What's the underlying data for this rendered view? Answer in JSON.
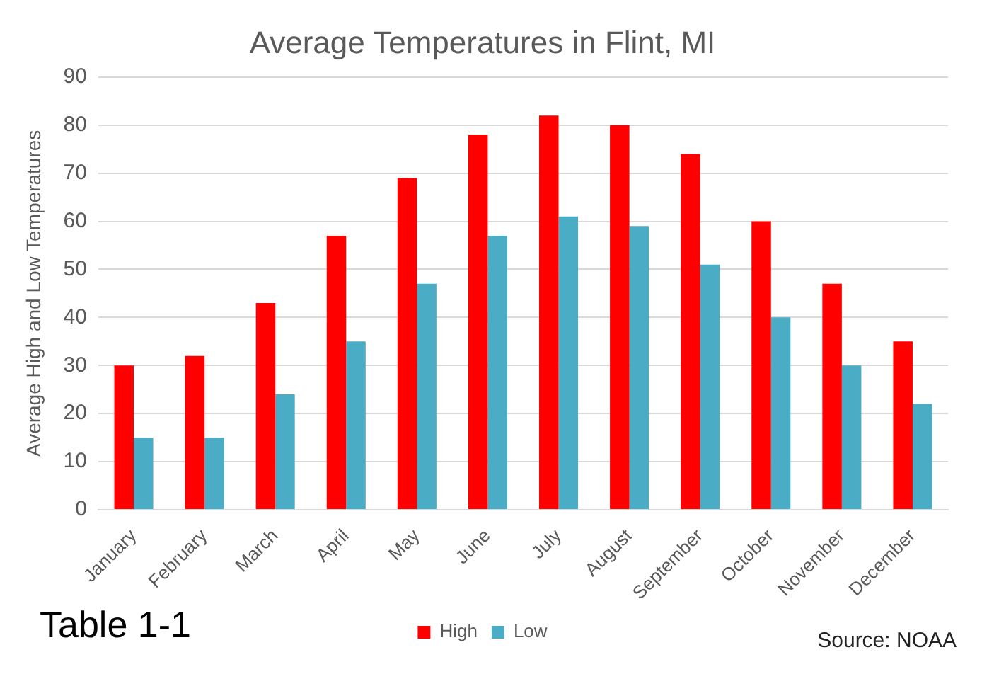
{
  "chart_data": {
    "type": "bar",
    "title": "Average Temperatures in Flint, MI",
    "ylabel": "Average High and Low Temperatures",
    "categories": [
      "January",
      "February",
      "March",
      "April",
      "May",
      "June",
      "July",
      "August",
      "September",
      "October",
      "November",
      "December"
    ],
    "series": [
      {
        "name": "High",
        "color": "#ff0000",
        "values": [
          30,
          32,
          43,
          57,
          69,
          78,
          82,
          80,
          74,
          60,
          47,
          35
        ]
      },
      {
        "name": "Low",
        "color": "#4bacc6",
        "values": [
          15,
          15,
          24,
          35,
          47,
          57,
          61,
          59,
          51,
          40,
          30,
          22
        ]
      }
    ],
    "ylim": [
      0,
      90
    ],
    "yticks": [
      0,
      10,
      20,
      30,
      40,
      50,
      60,
      70,
      80,
      90
    ],
    "grid": "y",
    "legend": "bottom",
    "annotations": [
      "Table 1-1",
      "Source: NOAA"
    ]
  }
}
